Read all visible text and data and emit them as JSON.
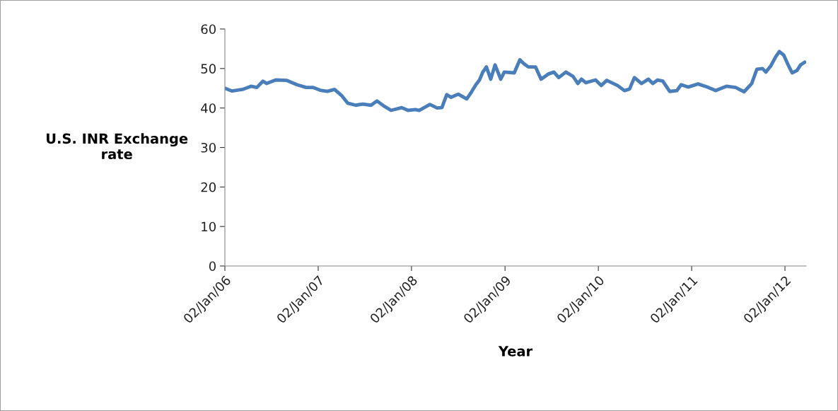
{
  "chart_data": {
    "type": "line",
    "xlabel": "Year",
    "ylabel": "U.S. INR Exchange\nrate",
    "x": [
      "2006-01-02",
      "2006-01-30",
      "2006-03-12",
      "2006-04-14",
      "2006-05-07",
      "2006-05-31",
      "2006-06-14",
      "2006-07-20",
      "2006-08-31",
      "2006-10-11",
      "2006-11-16",
      "2006-12-14",
      "2007-01-10",
      "2007-02-07",
      "2007-03-07",
      "2007-04-03",
      "2007-04-28",
      "2007-05-29",
      "2007-06-25",
      "2007-07-28",
      "2007-08-20",
      "2007-09-16",
      "2007-10-14",
      "2007-11-25",
      "2007-12-19",
      "2008-01-18",
      "2008-02-01",
      "2008-03-14",
      "2008-04-11",
      "2008-04-30",
      "2008-05-19",
      "2008-06-05",
      "2008-07-03",
      "2008-08-05",
      "2008-08-24",
      "2008-09-10",
      "2008-09-24",
      "2008-10-07",
      "2008-10-21",
      "2008-11-07",
      "2008-11-24",
      "2008-12-16",
      "2008-12-30",
      "2009-02-07",
      "2009-03-01",
      "2009-03-15",
      "2009-04-03",
      "2009-05-01",
      "2009-05-23",
      "2009-06-20",
      "2009-07-12",
      "2009-07-31",
      "2009-08-28",
      "2009-09-25",
      "2009-10-14",
      "2009-10-28",
      "2009-11-14",
      "2009-12-22",
      "2010-01-13",
      "2010-02-04",
      "2010-03-18",
      "2010-04-14",
      "2010-05-04",
      "2010-05-23",
      "2010-06-20",
      "2010-07-17",
      "2010-08-03",
      "2010-08-22",
      "2010-09-11",
      "2010-10-08",
      "2010-11-05",
      "2010-11-22",
      "2010-12-19",
      "2011-01-27",
      "2011-03-04",
      "2011-04-06",
      "2011-05-18",
      "2011-06-23",
      "2011-07-26",
      "2011-08-25",
      "2011-09-14",
      "2011-10-06",
      "2011-10-19",
      "2011-11-08",
      "2011-11-27",
      "2011-12-11",
      "2011-12-28",
      "2012-01-16",
      "2012-01-30",
      "2012-02-18",
      "2012-03-03",
      "2012-03-19"
    ],
    "series": [
      {
        "color": "#4a7ebb",
        "values": [
          45.0,
          44.3,
          44.7,
          45.5,
          45.2,
          46.8,
          46.2,
          47.1,
          47.0,
          45.9,
          45.2,
          45.2,
          44.5,
          44.2,
          44.7,
          43.2,
          41.2,
          40.7,
          41.0,
          40.7,
          41.8,
          40.5,
          39.4,
          40.1,
          39.4,
          39.6,
          39.4,
          40.9,
          40.0,
          40.1,
          43.4,
          42.7,
          43.5,
          42.3,
          44.1,
          45.9,
          47.1,
          49.1,
          50.4,
          47.3,
          50.9,
          47.3,
          49.1,
          48.9,
          52.2,
          51.3,
          50.4,
          50.4,
          47.3,
          48.6,
          49.1,
          47.7,
          49.1,
          48.0,
          46.2,
          47.3,
          46.4,
          47.1,
          45.7,
          47.0,
          45.7,
          44.4,
          44.8,
          47.7,
          46.2,
          47.3,
          46.2,
          47.1,
          46.8,
          44.2,
          44.4,
          45.9,
          45.3,
          46.1,
          45.3,
          44.4,
          45.5,
          45.2,
          44.1,
          46.2,
          49.8,
          50.0,
          49.1,
          50.7,
          53.0,
          54.3,
          53.4,
          50.7,
          48.9,
          49.5,
          50.9,
          51.6
        ]
      }
    ],
    "xlim": [
      "2006-01-02",
      "2012-03-25"
    ],
    "xticks": [
      {
        "value": "2006-01-02",
        "label": "02/Jan/06"
      },
      {
        "value": "2007-01-02",
        "label": "02/Jan/07"
      },
      {
        "value": "2008-01-02",
        "label": "02/Jan/08"
      },
      {
        "value": "2009-01-02",
        "label": "02/Jan/09"
      },
      {
        "value": "2010-01-02",
        "label": "02/Jan/10"
      },
      {
        "value": "2011-01-02",
        "label": "02/Jan/11"
      },
      {
        "value": "2012-01-02",
        "label": "02/Jan/12"
      }
    ],
    "ylim": [
      0,
      60
    ],
    "yticks": [
      0,
      10,
      20,
      30,
      40,
      50,
      60
    ],
    "grid": false,
    "legend": false,
    "marker": "none",
    "line_style": "solid"
  }
}
